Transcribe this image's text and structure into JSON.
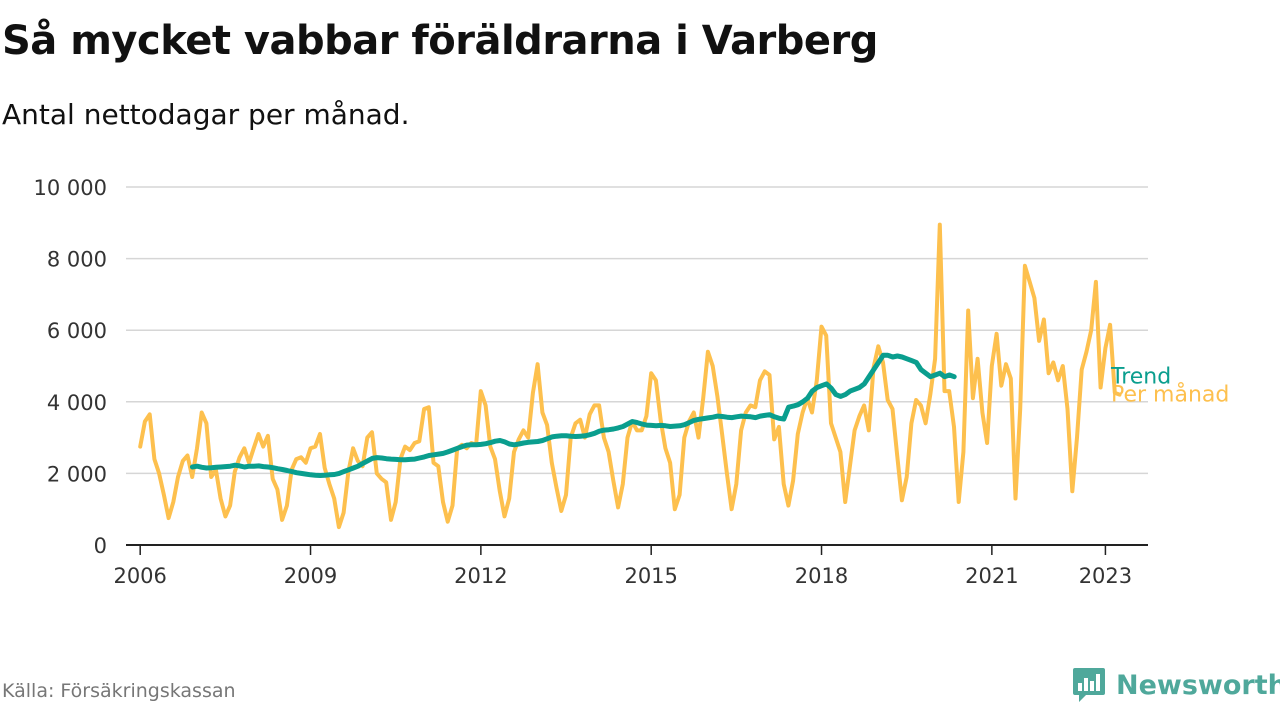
{
  "header": {
    "title": "Så mycket vabbar föräldrarna i Varberg",
    "subtitle": "Antal nettodagar per månad."
  },
  "footer": {
    "source": "Källa: Försäkringskassan",
    "brand": "Newsworthy",
    "brand_icon": "bar-chart-speech-bubble-icon"
  },
  "colors": {
    "trend": "#0a9e8e",
    "monthly": "#fdc04e",
    "grid": "#d6d6d6",
    "axis": "#222222",
    "brand": "#4fa89b"
  },
  "chart_data": {
    "type": "line",
    "title": "Så mycket vabbar föräldrarna i Varberg",
    "subtitle": "Antal nettodagar per månad.",
    "xlabel": "",
    "ylabel": "",
    "x_unit": "year",
    "xlim": [
      2005.75,
      2023.75
    ],
    "ylim": [
      0,
      10000
    ],
    "yticks": [
      0,
      2000,
      4000,
      6000,
      8000,
      10000
    ],
    "ytick_labels": [
      "0",
      "2 000",
      "4 000",
      "6 000",
      "8 000",
      "10 000"
    ],
    "xticks": [
      2006,
      2009,
      2012,
      2015,
      2018,
      2021,
      2023
    ],
    "xtick_labels": [
      "2006",
      "2009",
      "2012",
      "2015",
      "2018",
      "2021",
      "2023"
    ],
    "grid": "horizontal",
    "legend": "inline-right",
    "series": [
      {
        "name": "Per månad",
        "x_start": 2006.0,
        "step": 0.08333,
        "values": [
          2750,
          3450,
          3650,
          2400,
          2000,
          1400,
          750,
          1200,
          1900,
          2350,
          2500,
          1900,
          2700,
          3700,
          3400,
          1900,
          2100,
          1300,
          800,
          1100,
          2050,
          2450,
          2700,
          2300,
          2700,
          3100,
          2750,
          3050,
          1850,
          1550,
          700,
          1100,
          2100,
          2400,
          2450,
          2300,
          2700,
          2750,
          3100,
          2150,
          1700,
          1300,
          500,
          900,
          2050,
          2700,
          2350,
          2200,
          3000,
          3150,
          2000,
          1850,
          1750,
          700,
          1200,
          2400,
          2750,
          2650,
          2850,
          2900,
          3800,
          3850,
          2300,
          2200,
          1200,
          650,
          1100,
          2700,
          2800,
          2700,
          2850,
          2800,
          4300,
          3900,
          2750,
          2400,
          1500,
          800,
          1300,
          2600,
          2950,
          3200,
          3000,
          4250,
          5050,
          3700,
          3350,
          2300,
          1600,
          950,
          1400,
          3000,
          3400,
          3500,
          3000,
          3650,
          3900,
          3900,
          3000,
          2600,
          1800,
          1050,
          1700,
          3000,
          3450,
          3200,
          3200,
          3600,
          4800,
          4600,
          3500,
          2700,
          2300,
          1000,
          1400,
          3000,
          3450,
          3700,
          3000,
          4100,
          5400,
          5000,
          4150,
          3100,
          2000,
          1000,
          1700,
          3200,
          3700,
          3900,
          3850,
          4600,
          4850,
          4750,
          2950,
          3300,
          1700,
          1100,
          1800,
          3100,
          3700,
          4100,
          3700,
          4600,
          6100,
          5850,
          3400,
          3000,
          2600,
          1200,
          2200,
          3200,
          3600,
          3900,
          3200,
          4950,
          5550,
          5100,
          4050,
          3800,
          2500,
          1250,
          1900,
          3400,
          4050,
          3900,
          3400,
          4200,
          5200,
          8950,
          4300,
          4300,
          3300,
          1200,
          2600,
          6550,
          4100,
          5200,
          3700,
          2850,
          5000,
          5900,
          4450,
          5050,
          4650,
          1300,
          3800,
          7800,
          7350,
          6900,
          5700,
          6300,
          4800,
          5100,
          4600,
          5000,
          3800,
          1500,
          3000,
          4900,
          5400,
          6000,
          7350,
          4400,
          5500,
          6150,
          4250,
          4200
        ]
      },
      {
        "name": "Trend",
        "x_start": 2006.92,
        "step": 0.08333,
        "values": [
          2180,
          2200,
          2170,
          2150,
          2160,
          2170,
          2180,
          2190,
          2200,
          2230,
          2210,
          2180,
          2200,
          2200,
          2210,
          2190,
          2180,
          2160,
          2130,
          2110,
          2080,
          2050,
          2020,
          2000,
          1980,
          1960,
          1950,
          1940,
          1950,
          1960,
          1970,
          2000,
          2050,
          2100,
          2150,
          2200,
          2280,
          2350,
          2420,
          2440,
          2430,
          2410,
          2400,
          2390,
          2380,
          2380,
          2390,
          2400,
          2430,
          2460,
          2500,
          2520,
          2540,
          2560,
          2600,
          2650,
          2700,
          2750,
          2790,
          2800,
          2800,
          2810,
          2830,
          2860,
          2900,
          2920,
          2880,
          2820,
          2800,
          2820,
          2850,
          2870,
          2880,
          2890,
          2920,
          2970,
          3020,
          3040,
          3050,
          3050,
          3040,
          3030,
          3040,
          3050,
          3080,
          3120,
          3180,
          3210,
          3220,
          3240,
          3270,
          3310,
          3380,
          3450,
          3420,
          3380,
          3350,
          3340,
          3330,
          3340,
          3330,
          3310,
          3320,
          3330,
          3360,
          3420,
          3480,
          3510,
          3530,
          3550,
          3570,
          3600,
          3590,
          3570,
          3560,
          3580,
          3600,
          3590,
          3580,
          3560,
          3600,
          3620,
          3640,
          3580,
          3540,
          3520,
          3850,
          3880,
          3920,
          4000,
          4100,
          4300,
          4400,
          4450,
          4500,
          4380,
          4200,
          4150,
          4200,
          4300,
          4350,
          4400,
          4500,
          4700,
          4900,
          5100,
          5300,
          5300,
          5250,
          5280,
          5250,
          5200,
          5150,
          5100,
          4900,
          4800,
          4700,
          4750,
          4800,
          4700,
          4750,
          4700
        ]
      }
    ]
  }
}
